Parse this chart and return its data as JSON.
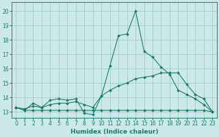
{
  "xlabel": "Humidex (Indice chaleur)",
  "bg_color": "#cce8e8",
  "grid_color": "#99cccc",
  "line_color": "#1a7a6e",
  "xlim": [
    -0.5,
    23.5
  ],
  "ylim": [
    12.6,
    20.6
  ],
  "yticks": [
    13,
    14,
    15,
    16,
    17,
    18,
    19,
    20
  ],
  "xticks": [
    0,
    1,
    2,
    3,
    4,
    5,
    6,
    7,
    8,
    9,
    10,
    11,
    12,
    13,
    14,
    15,
    16,
    17,
    18,
    19,
    20,
    21,
    22,
    23
  ],
  "series_min_x": [
    0,
    1,
    2,
    3,
    4,
    5,
    6,
    7,
    8,
    9,
    10,
    11,
    12,
    13,
    14,
    15,
    16,
    17,
    18,
    19,
    20,
    21,
    22,
    23
  ],
  "series_min_y": [
    13.3,
    13.1,
    13.1,
    13.1,
    13.1,
    13.1,
    13.1,
    13.1,
    13.1,
    13.1,
    13.1,
    13.1,
    13.1,
    13.1,
    13.1,
    13.1,
    13.1,
    13.1,
    13.1,
    13.1,
    13.1,
    13.1,
    13.1,
    13.0
  ],
  "series_main_x": [
    0,
    1,
    2,
    3,
    4,
    5,
    6,
    7,
    8,
    9,
    10,
    11,
    12,
    13,
    14,
    15,
    16,
    17,
    18,
    19,
    20,
    21,
    22,
    23
  ],
  "series_main_y": [
    13.3,
    13.1,
    13.6,
    13.3,
    13.8,
    13.9,
    13.8,
    13.9,
    12.9,
    12.8,
    14.1,
    16.2,
    18.3,
    18.4,
    20.0,
    17.2,
    16.8,
    16.1,
    15.6,
    14.5,
    14.2,
    13.9,
    13.5,
    13.0
  ],
  "series_trend_x": [
    0,
    1,
    2,
    3,
    4,
    5,
    6,
    7,
    8,
    9,
    10,
    11,
    12,
    13,
    14,
    15,
    16,
    17,
    18,
    19,
    20,
    21,
    22,
    23
  ],
  "series_trend_y": [
    13.3,
    13.2,
    13.4,
    13.3,
    13.5,
    13.6,
    13.6,
    13.7,
    13.5,
    13.3,
    14.1,
    14.5,
    14.8,
    15.0,
    15.3,
    15.4,
    15.5,
    15.7,
    15.7,
    15.7,
    14.9,
    14.2,
    13.9,
    13.0
  ]
}
